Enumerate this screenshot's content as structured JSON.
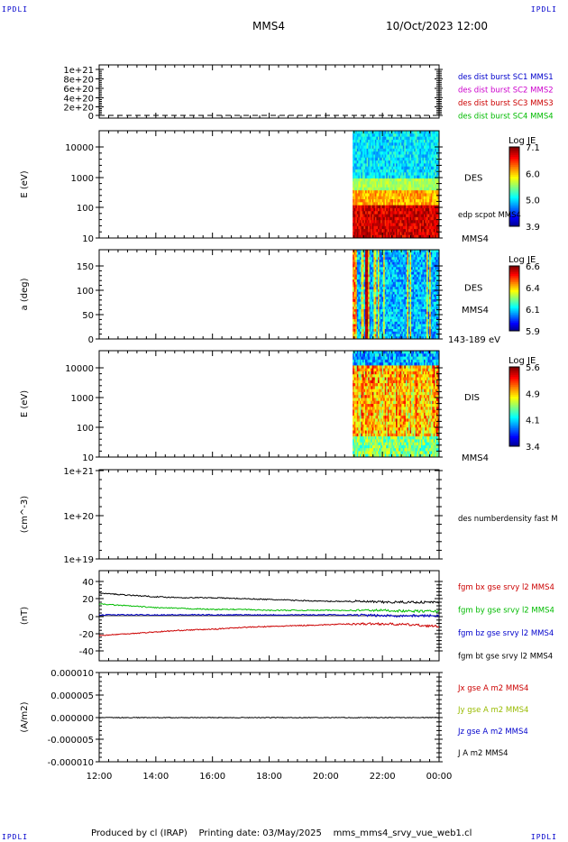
{
  "header": {
    "corner_left": "IPDLI",
    "corner_right": "IPDLI",
    "spacecraft": "MMS4",
    "datetime": "10/Oct/2023 12:00"
  },
  "footer": {
    "producer": "Produced by cl (IRAP)",
    "printing": "Printing date: 03/May/2025",
    "file": "mms_mms4_srvy_vue_web1.cl"
  },
  "time_axis": {
    "ticks": [
      "12:00",
      "14:00",
      "16:00",
      "18:00",
      "20:00",
      "22:00",
      "00:00"
    ],
    "range_hours": [
      12,
      24
    ]
  },
  "chart_data": [
    {
      "type": "line",
      "panel": "burst",
      "y_ticks": [
        "1e+21",
        "8e+20",
        "6e+20",
        "4e+20",
        "2e+20",
        "0"
      ],
      "ylim": [
        0,
        1.1e+21
      ],
      "series": [
        {
          "name": "des dist burst SC1 MMS1",
          "color": "#0000cc"
        },
        {
          "name": "des dist burst SC2 MMS2",
          "color": "#cc00cc"
        },
        {
          "name": "des dist burst SC3 MMS3",
          "color": "#cc0000"
        },
        {
          "name": "des dist burst SC4 MMS4",
          "color": "#00bb00"
        }
      ],
      "values": "0 (dashed baseline)"
    },
    {
      "type": "heatmap",
      "panel": "des_energy",
      "ylabel": "E (eV)",
      "y_scale": "log",
      "y_ticks": [
        "10000",
        "1000",
        "100",
        "10"
      ],
      "ylim": [
        10,
        25000
      ],
      "label": "DES",
      "right_labels": [
        "edp scpot MMS4",
        "MMS4"
      ],
      "colorbar": {
        "title": "Log JE",
        "ticks": [
          "7.1",
          "6.0",
          "5.0",
          "3.9"
        ],
        "range": [
          3.9,
          7.1
        ]
      },
      "data_start_hour": 20.95
    },
    {
      "type": "heatmap",
      "panel": "des_pitch",
      "ylabel": "a (deg)",
      "y_ticks": [
        "150",
        "100",
        "50",
        "0"
      ],
      "ylim": [
        0,
        180
      ],
      "label": "DES",
      "right_labels": [
        "MMS4",
        "143-189 eV"
      ],
      "colorbar": {
        "title": "Log JE",
        "ticks": [
          "6.6",
          "6.4",
          "6.1",
          "5.9"
        ],
        "range": [
          5.9,
          6.6
        ]
      },
      "data_start_hour": 20.95
    },
    {
      "type": "heatmap",
      "panel": "dis_energy",
      "ylabel": "E (eV)",
      "y_scale": "log",
      "y_ticks": [
        "10000",
        "1000",
        "100",
        "10"
      ],
      "ylim": [
        10,
        25000
      ],
      "label": "DIS",
      "right_labels": [
        "MMS4"
      ],
      "colorbar": {
        "title": "Log JE",
        "ticks": [
          "5.6",
          "4.9",
          "4.1",
          "3.4"
        ],
        "range": [
          3.4,
          5.6
        ]
      },
      "data_start_hour": 20.95
    },
    {
      "type": "line",
      "panel": "density",
      "ylabel": "(cm^-3)",
      "y_scale": "log",
      "y_ticks": [
        "1e+21",
        "1e+20",
        "1e+19"
      ],
      "series": [
        {
          "name": "des numberdensity fast M",
          "color": "#000000"
        }
      ]
    },
    {
      "type": "line",
      "panel": "fgm",
      "ylabel": "(nT)",
      "y_ticks": [
        "40",
        "20",
        "0",
        "-20",
        "-40"
      ],
      "ylim": [
        -50,
        50
      ],
      "x": [
        12,
        13,
        14,
        15,
        16,
        17,
        18,
        19,
        20,
        21,
        22,
        23,
        24
      ],
      "series": [
        {
          "name": "fgm bx gse srvy l2 MMS4",
          "color": "#cc0000",
          "values": [
            -22,
            -20,
            -18,
            -16,
            -15,
            -13,
            -12,
            -11,
            -10,
            -9,
            -9,
            -10,
            -12
          ]
        },
        {
          "name": "fgm by gse srvy l2 MMS4",
          "color": "#00bb00",
          "values": [
            13,
            11,
            9,
            8,
            7,
            7,
            6,
            6,
            6,
            6,
            6,
            5,
            5
          ]
        },
        {
          "name": "fgm bz gse srvy l2 MMS4",
          "color": "#0000cc",
          "values": [
            1,
            1,
            1,
            1,
            1,
            1,
            1,
            1,
            1,
            1,
            0,
            0,
            0
          ]
        },
        {
          "name": "fgm bt gse srvy l2 MMS4",
          "color": "#000000",
          "values": [
            25,
            23,
            21,
            20,
            20,
            19,
            18,
            17,
            16,
            16,
            15,
            15,
            15
          ]
        }
      ]
    },
    {
      "type": "line",
      "panel": "current",
      "ylabel": "(A/m2)",
      "y_ticks": [
        "0.000010",
        "0.000005",
        "0.000000",
        "-0.000005",
        "-0.000010"
      ],
      "ylim": [
        -1e-05,
        1e-05
      ],
      "series": [
        {
          "name": "Jx gse A m2 MMS4",
          "color": "#cc0000"
        },
        {
          "name": "Jy gse A m2 MMS4",
          "color": "#99bb00"
        },
        {
          "name": "Jz gse A m2 MMS4",
          "color": "#0000cc"
        },
        {
          "name": "J A m2 MMS4",
          "color": "#000000"
        }
      ],
      "values": "approximately 0 throughout"
    }
  ]
}
